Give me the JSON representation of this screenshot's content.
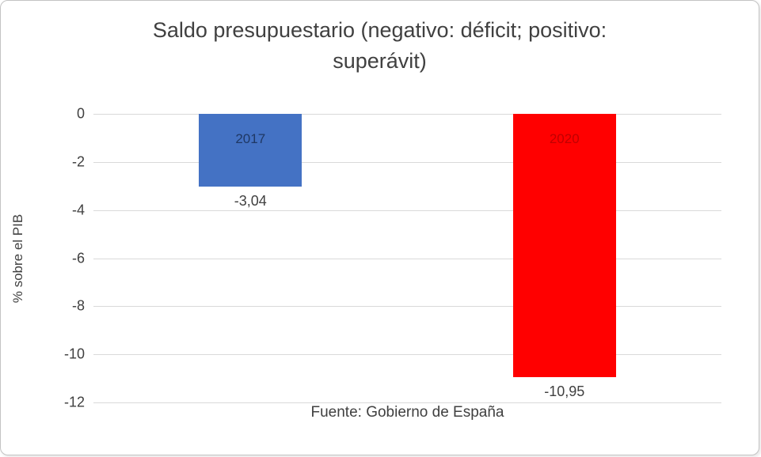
{
  "chart_data": {
    "type": "bar",
    "title": "Saldo presupuestario (negativo: déficit; positivo: superávit)",
    "title_lines": [
      "Saldo presupuestario (negativo: déficit; positivo:",
      "superávit)"
    ],
    "categories": [
      "2017",
      "2020"
    ],
    "values": [
      -3.04,
      -10.95
    ],
    "value_labels": [
      "-3,04",
      "-10,95"
    ],
    "bar_colors": [
      "#4472c4",
      "#ff0000"
    ],
    "bar_label_colors": [
      "#1f3864",
      "#c00000"
    ],
    "xlabel": "Fuente: Gobierno de España",
    "ylabel": "% sobre el PIB",
    "ylim": [
      -12,
      0
    ],
    "yticks": [
      0,
      -2,
      -4,
      -6,
      -8,
      -10,
      -12
    ],
    "ytick_labels": [
      "0",
      "-2",
      "-4",
      "-6",
      "-8",
      "-10",
      "-12"
    ],
    "grid": true,
    "legend": "none",
    "gridline_color": "#d9d9d9",
    "text_color": "#404040"
  }
}
